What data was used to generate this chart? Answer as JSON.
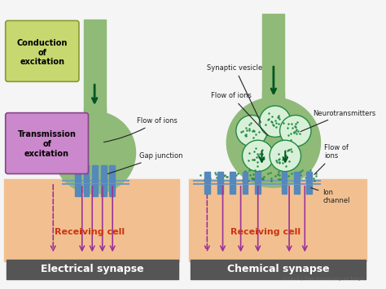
{
  "bg_color": "#f5f5f5",
  "neuron_color": "#8fba78",
  "neuron_outline": "#6a9a58",
  "gap_junction_color": "#5588bb",
  "arrow_color": "#005522",
  "signal_arrow_color": "#993399",
  "conduction_box_color": "#c8d870",
  "conduction_box_edge": "#8a9830",
  "transmission_box_color": "#cc88cc",
  "transmission_box_edge": "#884488",
  "receiving_cell_color": "#f2c090",
  "receiving_label_color": "#cc3311",
  "label_bg": "#555555",
  "annotation_color": "#222222",
  "vesicle_fill": "#d8f0d8",
  "vesicle_edge": "#228844",
  "vesicle_dot": "#228844",
  "membrane_color": "#7799bb",
  "copyright": "©CSLS / The University of Tokyo",
  "left_label": "Electrical synapse",
  "right_label": "Chemical synapse",
  "left_receiving": "Receiving cell",
  "right_receiving": "Receiving cell"
}
